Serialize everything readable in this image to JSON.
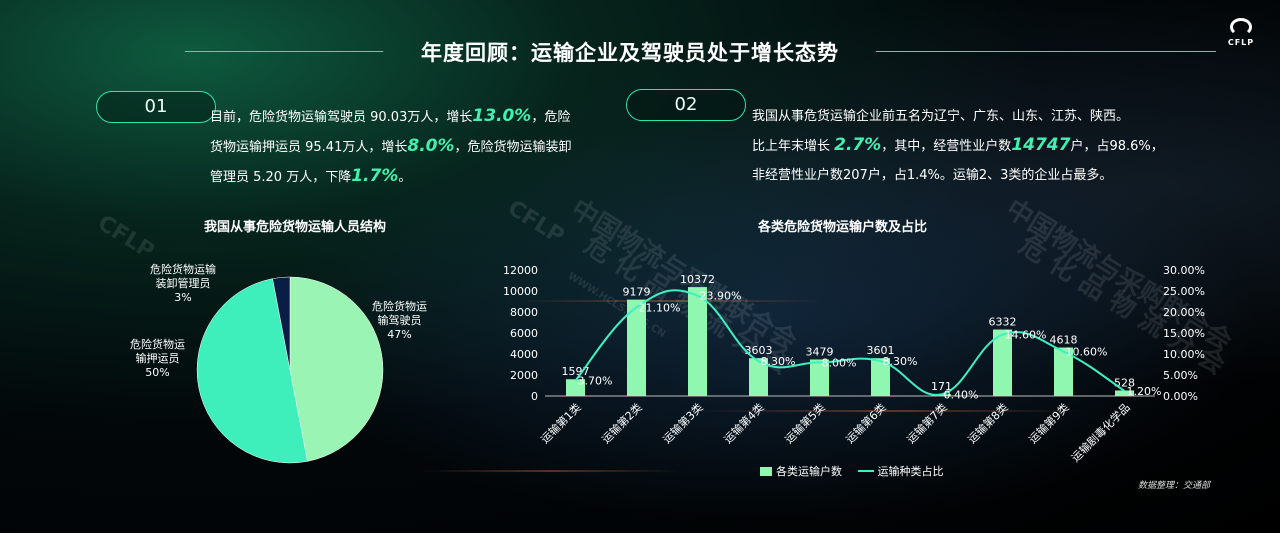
{
  "header": {
    "title": "年度回顾：运输企业及驾驶员处于增长态势",
    "logo_text": "CFLP"
  },
  "section1": {
    "number": "01",
    "parts": [
      {
        "t": "目前，危险货物运输驾驶员 90.03万人，增长"
      },
      {
        "t": "13.0%",
        "hl": true
      },
      {
        "t": "，危险"
      },
      {
        "t": "货物运输押运员 95.41万人，增长",
        "br": true
      },
      {
        "t": "8.0%",
        "hl": true
      },
      {
        "t": "，危险货物运输装卸"
      },
      {
        "t": "管理员 5.20 万人，下降",
        "br": true
      },
      {
        "t": "1.7%",
        "hl": true
      },
      {
        "t": "。"
      }
    ]
  },
  "section2": {
    "number": "02",
    "parts": [
      {
        "t": "我国从事危货运输企业前五名为辽宁、广东、山东、江苏、陕西。"
      },
      {
        "t": "比上年末增长 ",
        "br": true
      },
      {
        "t": "2.7%",
        "hl": true
      },
      {
        "t": "，其中，经营性业户数"
      },
      {
        "t": "14747",
        "hl": true
      },
      {
        "t": "户，占98.6%，"
      },
      {
        "t": "非经营性业户数207户，占1.4%。运输2、3类的企业占最多。",
        "br": true
      }
    ]
  },
  "watermarks": {
    "org": "中国物流与采购联合会",
    "sub": "危 化 品 物 流 分 会",
    "logo": "CFLP",
    "url": "WWW.HCLS.ORG.CN"
  },
  "pie_chart": {
    "title": "我国从事危险货物运输人员结构",
    "slice_colors": [
      "#9af5b4",
      "#3fefbb",
      "#0a1e45"
    ],
    "slice_labels": [
      [
        "危险货物运",
        "输驾驶员",
        "47%"
      ],
      [
        "危险货物运",
        "输押运员",
        "50%"
      ],
      [
        "危险货物运输",
        "装卸管理员",
        "3%"
      ]
    ]
  },
  "chart_data": [
    {
      "type": "pie",
      "title": "我国从事危险货物运输人员结构",
      "categories": [
        "危险货物运输驾驶员",
        "危险货物运输押运员",
        "危险货物运输装卸管理员"
      ],
      "values": [
        47,
        50,
        3
      ]
    },
    {
      "type": "bar",
      "title": "各类危险货物运输户数及占比",
      "categories": [
        "运输第1类",
        "运输第2类",
        "运输第3类",
        "运输第4类",
        "运输第5类",
        "运输第6类",
        "运输第7类",
        "运输第8类",
        "运输第9类",
        "运输剧毒化学品"
      ],
      "series": [
        {
          "name": "各类运输户数",
          "type": "bar",
          "axis": "left",
          "values": [
            1597,
            9179,
            10372,
            3603,
            3479,
            3601,
            171,
            6332,
            4618,
            528
          ],
          "color": "#8ff7b0"
        },
        {
          "name": "运输种类占比",
          "type": "line",
          "axis": "right",
          "values": [
            3.7,
            21.1,
            23.9,
            8.3,
            8.0,
            8.3,
            0.4,
            14.6,
            10.6,
            1.2
          ],
          "color": "#3ff0c0"
        }
      ],
      "value_labels": [
        "1597",
        "9179",
        "10372",
        "3603",
        "3479",
        "3601",
        "171",
        "6332",
        "4618",
        "528"
      ],
      "pct_labels": [
        "3.70%",
        "21.10%",
        "23.90%",
        "8.30%",
        "8.00%",
        "8.30%",
        "0.40%",
        "14.60%",
        "10.60%",
        "1.20%"
      ],
      "ylim": [
        0,
        12000
      ],
      "yticks": [
        "0",
        "2000",
        "4000",
        "6000",
        "8000",
        "10000",
        "12000"
      ],
      "y2lim": [
        0,
        30
      ],
      "y2ticks": [
        "0.00%",
        "5.00%",
        "10.00%",
        "15.00%",
        "20.00%",
        "25.00%",
        "30.00%"
      ],
      "legend_position": "bottom",
      "grid": false
    }
  ],
  "legend": {
    "bar": "各类运输户数",
    "line": "运输种类占比"
  },
  "source_note": "数据整理：交通部"
}
